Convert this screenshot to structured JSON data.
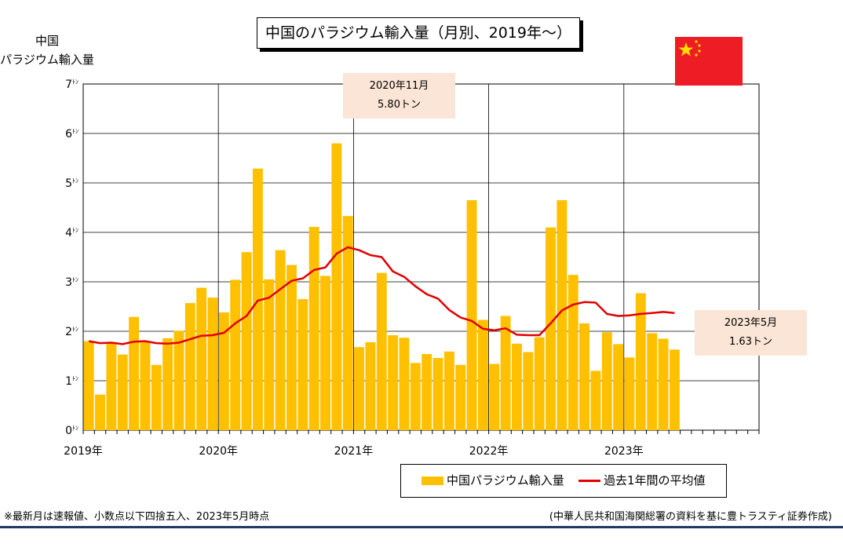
{
  "title": "中国のパラジウム輸入量（月別、2019年～）",
  "y_axis_title": [
    "中国",
    "パラジウム輸入量"
  ],
  "callouts": [
    {
      "line1": "2020年11月",
      "line2": "5.80トン"
    },
    {
      "line1": "2023年5月",
      "line2": "1.63トン"
    }
  ],
  "note": "※最新月は速報値、小数点以下四捨五入、2023年5月時点",
  "source": "(中華人民共和国海関総署の資料を基に豊トラスティ証券作成)",
  "colors": {
    "bar": "#ffc000",
    "line": "#e00000",
    "flag": "#ee1c25",
    "star": "#ffde00",
    "callout": "#fbe5d6"
  },
  "chart_data": {
    "type": "bar",
    "title": "中国のパラジウム輸入量（月別、2019年～）",
    "ylabel": "中国 パラジウム輸入量",
    "ylim": [
      0,
      7
    ],
    "y_ticks": [
      "0ﾄﾝ",
      "1ﾄﾝ",
      "2ﾄﾝ",
      "3ﾄﾝ",
      "4ﾄﾝ",
      "5ﾄﾝ",
      "6ﾄﾝ",
      "7ﾄﾝ"
    ],
    "x_tick_labels": [
      "2019年",
      "2020年",
      "2021年",
      "2022年",
      "2023年"
    ],
    "months_total": 60,
    "series": [
      {
        "name": "中国パラジウム輸入量",
        "type": "bar",
        "values": [
          1.8,
          0.72,
          1.78,
          1.53,
          2.29,
          1.8,
          1.32,
          1.86,
          2.01,
          2.57,
          2.88,
          2.68,
          2.38,
          3.04,
          3.6,
          5.29,
          3.05,
          3.64,
          3.34,
          2.65,
          4.11,
          3.12,
          5.8,
          4.33,
          1.68,
          1.78,
          3.18,
          1.92,
          1.87,
          1.36,
          1.54,
          1.46,
          1.59,
          1.32,
          4.65,
          2.23,
          1.34,
          2.31,
          1.75,
          1.58,
          1.88,
          4.1,
          4.65,
          3.14,
          2.16,
          1.2,
          1.98,
          1.74,
          1.47,
          2.77,
          1.96,
          1.85,
          1.63
        ]
      },
      {
        "name": "過去1年間の平均値",
        "type": "line",
        "values": [
          1.8,
          1.76,
          1.77,
          1.74,
          1.79,
          1.8,
          1.76,
          1.75,
          1.77,
          1.84,
          1.91,
          1.92,
          1.97,
          2.16,
          2.31,
          2.62,
          2.68,
          2.85,
          3.02,
          3.07,
          3.24,
          3.29,
          3.57,
          3.7,
          3.64,
          3.54,
          3.5,
          3.21,
          3.1,
          2.91,
          2.75,
          2.66,
          2.43,
          2.28,
          2.21,
          2.05,
          2.02,
          2.06,
          1.93,
          1.92,
          1.92,
          2.16,
          2.42,
          2.54,
          2.59,
          2.58,
          2.35,
          2.31,
          2.32,
          2.35,
          2.37,
          2.39,
          2.37
        ]
      }
    ],
    "grid": true
  }
}
